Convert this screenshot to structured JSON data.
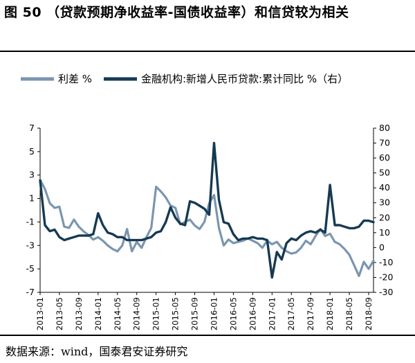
{
  "title": "图 50 （贷款预期净收益率-国债收益率）和信贷较为相关",
  "source": "数据来源：wind，国泰君安证券研究",
  "chart_data": {
    "type": "line",
    "left_axis": {
      "ylim": [
        -7,
        7
      ],
      "ticks": [
        "7",
        "5",
        "3",
        "1",
        "-1",
        "-3",
        "-5",
        "-7"
      ]
    },
    "right_axis": {
      "ylim": [
        -30,
        80
      ],
      "ticks": [
        "80",
        "70",
        "60",
        "50",
        "40",
        "30",
        "20",
        "10",
        "0",
        "-10",
        "-20",
        "-30"
      ]
    },
    "x_ticks": [
      "2013-01",
      "2013-05",
      "2013-09",
      "2014-01",
      "2014-05",
      "2014-09",
      "2015-01",
      "2015-05",
      "2015-09",
      "2016-01",
      "2016-05",
      "2016-09",
      "2017-01",
      "2017-05",
      "2017-09",
      "2018-01",
      "2018-05",
      "2018-09"
    ],
    "legend": "top",
    "series": [
      {
        "name": "利差 %",
        "axis": "left",
        "color": "#7b95b0",
        "values": [
          [
            "2013-01",
            2.6
          ],
          [
            "2013-02",
            1.8
          ],
          [
            "2013-03",
            0.6
          ],
          [
            "2013-04",
            0.2
          ],
          [
            "2013-05",
            0.3
          ],
          [
            "2013-06",
            -1.4
          ],
          [
            "2013-07",
            -1.5
          ],
          [
            "2013-08",
            -0.8
          ],
          [
            "2013-09",
            -1.4
          ],
          [
            "2013-10",
            -1.8
          ],
          [
            "2013-11",
            -2.1
          ],
          [
            "2013-12",
            -2.5
          ],
          [
            "2014-01",
            -2.3
          ],
          [
            "2014-02",
            -2.6
          ],
          [
            "2014-03",
            -3.0
          ],
          [
            "2014-04",
            -3.3
          ],
          [
            "2014-05",
            -3.5
          ],
          [
            "2014-06",
            -3.0
          ],
          [
            "2014-07",
            -1.6
          ],
          [
            "2014-08",
            -3.5
          ],
          [
            "2014-09",
            -2.7
          ],
          [
            "2014-10",
            -3.2
          ],
          [
            "2014-11",
            -2.3
          ],
          [
            "2014-12",
            -1.5
          ],
          [
            "2015-01",
            2.0
          ],
          [
            "2015-02",
            1.6
          ],
          [
            "2015-03",
            1.1
          ],
          [
            "2015-04",
            0.4
          ],
          [
            "2015-05",
            0.2
          ],
          [
            "2015-06",
            -1.2
          ],
          [
            "2015-07",
            -1.0
          ],
          [
            "2015-08",
            -0.8
          ],
          [
            "2015-09",
            -1.3
          ],
          [
            "2015-10",
            -1.6
          ],
          [
            "2015-11",
            -1.0
          ],
          [
            "2015-12",
            0.6
          ],
          [
            "2016-01",
            1.3
          ],
          [
            "2016-02",
            -1.5
          ],
          [
            "2016-03",
            -3.0
          ],
          [
            "2016-04",
            -2.5
          ],
          [
            "2016-05",
            -2.8
          ],
          [
            "2016-06",
            -2.7
          ],
          [
            "2016-07",
            -2.6
          ],
          [
            "2016-08",
            -2.4
          ],
          [
            "2016-09",
            -2.6
          ],
          [
            "2016-10",
            -2.8
          ],
          [
            "2016-11",
            -3.2
          ],
          [
            "2016-12",
            -2.6
          ],
          [
            "2017-01",
            -2.9
          ],
          [
            "2017-02",
            -2.7
          ],
          [
            "2017-03",
            -3.2
          ],
          [
            "2017-04",
            -3.5
          ],
          [
            "2017-05",
            -3.7
          ],
          [
            "2017-06",
            -3.6
          ],
          [
            "2017-07",
            -3.2
          ],
          [
            "2017-08",
            -2.6
          ],
          [
            "2017-09",
            -2.9
          ],
          [
            "2017-10",
            -2.2
          ],
          [
            "2017-11",
            -1.6
          ],
          [
            "2017-12",
            -2.2
          ],
          [
            "2018-01",
            -2.0
          ],
          [
            "2018-02",
            -2.7
          ],
          [
            "2018-03",
            -2.9
          ],
          [
            "2018-04",
            -3.3
          ],
          [
            "2018-05",
            -3.8
          ],
          [
            "2018-06",
            -4.7
          ],
          [
            "2018-07",
            -5.6
          ],
          [
            "2018-08",
            -4.4
          ],
          [
            "2018-09",
            -5.0
          ],
          [
            "2018-10",
            -4.3
          ]
        ]
      },
      {
        "name": "金融机构:新增人民币贷款:累计同比 %（右）",
        "axis": "right",
        "color": "#163a52",
        "values": [
          [
            "2013-01",
            45
          ],
          [
            "2013-02",
            15
          ],
          [
            "2013-03",
            11
          ],
          [
            "2013-04",
            12
          ],
          [
            "2013-05",
            7
          ],
          [
            "2013-06",
            5
          ],
          [
            "2013-07",
            6
          ],
          [
            "2013-08",
            7
          ],
          [
            "2013-09",
            8
          ],
          [
            "2013-10",
            8
          ],
          [
            "2013-11",
            8
          ],
          [
            "2013-12",
            9
          ],
          [
            "2014-01",
            23
          ],
          [
            "2014-02",
            15
          ],
          [
            "2014-03",
            10
          ],
          [
            "2014-04",
            9
          ],
          [
            "2014-05",
            7
          ],
          [
            "2014-06",
            7
          ],
          [
            "2014-07",
            5
          ],
          [
            "2014-08",
            5
          ],
          [
            "2014-09",
            5
          ],
          [
            "2014-10",
            5
          ],
          [
            "2014-11",
            6
          ],
          [
            "2014-12",
            7
          ],
          [
            "2015-01",
            10
          ],
          [
            "2015-02",
            11
          ],
          [
            "2015-03",
            17
          ],
          [
            "2015-04",
            27
          ],
          [
            "2015-05",
            20
          ],
          [
            "2015-06",
            16
          ],
          [
            "2015-07",
            15
          ],
          [
            "2015-08",
            31
          ],
          [
            "2015-09",
            30
          ],
          [
            "2015-10",
            28
          ],
          [
            "2015-11",
            26
          ],
          [
            "2015-12",
            22
          ],
          [
            "2016-01",
            70
          ],
          [
            "2016-02",
            32
          ],
          [
            "2016-03",
            17
          ],
          [
            "2016-04",
            16
          ],
          [
            "2016-05",
            9
          ],
          [
            "2016-06",
            5
          ],
          [
            "2016-07",
            6
          ],
          [
            "2016-08",
            6
          ],
          [
            "2016-09",
            7
          ],
          [
            "2016-10",
            6
          ],
          [
            "2016-11",
            6
          ],
          [
            "2016-12",
            5
          ],
          [
            "2017-01",
            -20
          ],
          [
            "2017-02",
            -3
          ],
          [
            "2017-03",
            -8
          ],
          [
            "2017-04",
            3
          ],
          [
            "2017-05",
            6
          ],
          [
            "2017-06",
            5
          ],
          [
            "2017-07",
            8
          ],
          [
            "2017-08",
            10
          ],
          [
            "2017-09",
            11
          ],
          [
            "2017-10",
            10
          ],
          [
            "2017-11",
            12
          ],
          [
            "2017-12",
            10
          ],
          [
            "2018-01",
            42
          ],
          [
            "2018-02",
            15
          ],
          [
            "2018-03",
            15
          ],
          [
            "2018-04",
            14
          ],
          [
            "2018-05",
            13
          ],
          [
            "2018-06",
            13
          ],
          [
            "2018-07",
            14
          ],
          [
            "2018-08",
            18
          ],
          [
            "2018-09",
            18
          ],
          [
            "2018-10",
            17
          ]
        ]
      }
    ]
  }
}
